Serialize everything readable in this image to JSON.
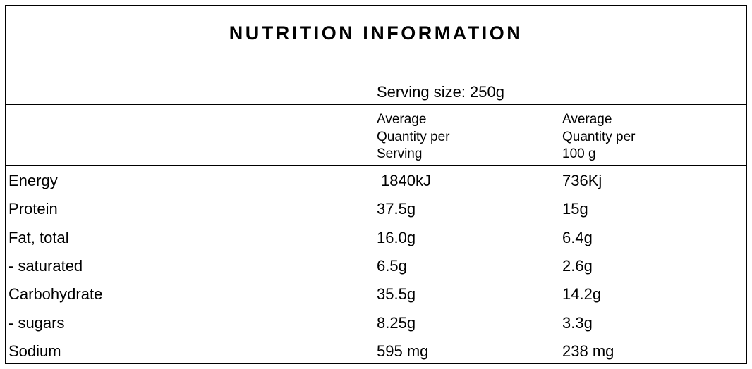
{
  "title": "NUTRITION INFORMATION",
  "serving_size": "Serving size: 250g",
  "column_headers": [
    [
      "Average",
      "Quantity per",
      "Serving"
    ],
    [
      "Average",
      "Quantity per",
      "100 g"
    ]
  ],
  "table": {
    "rows": [
      [
        "Energy",
        "1840kJ",
        "736Kj"
      ],
      [
        "Protein",
        "37.5g",
        "15g"
      ],
      [
        "Fat, total",
        "16.0g",
        "6.4g"
      ],
      [
        "- saturated",
        "6.5g",
        "2.6g"
      ],
      [
        "Carbohydrate",
        "35.5g",
        "14.2g"
      ],
      [
        "- sugars",
        "8.25g",
        "3.3g"
      ],
      [
        "Sodium",
        "595 mg",
        "238 mg"
      ]
    ]
  }
}
